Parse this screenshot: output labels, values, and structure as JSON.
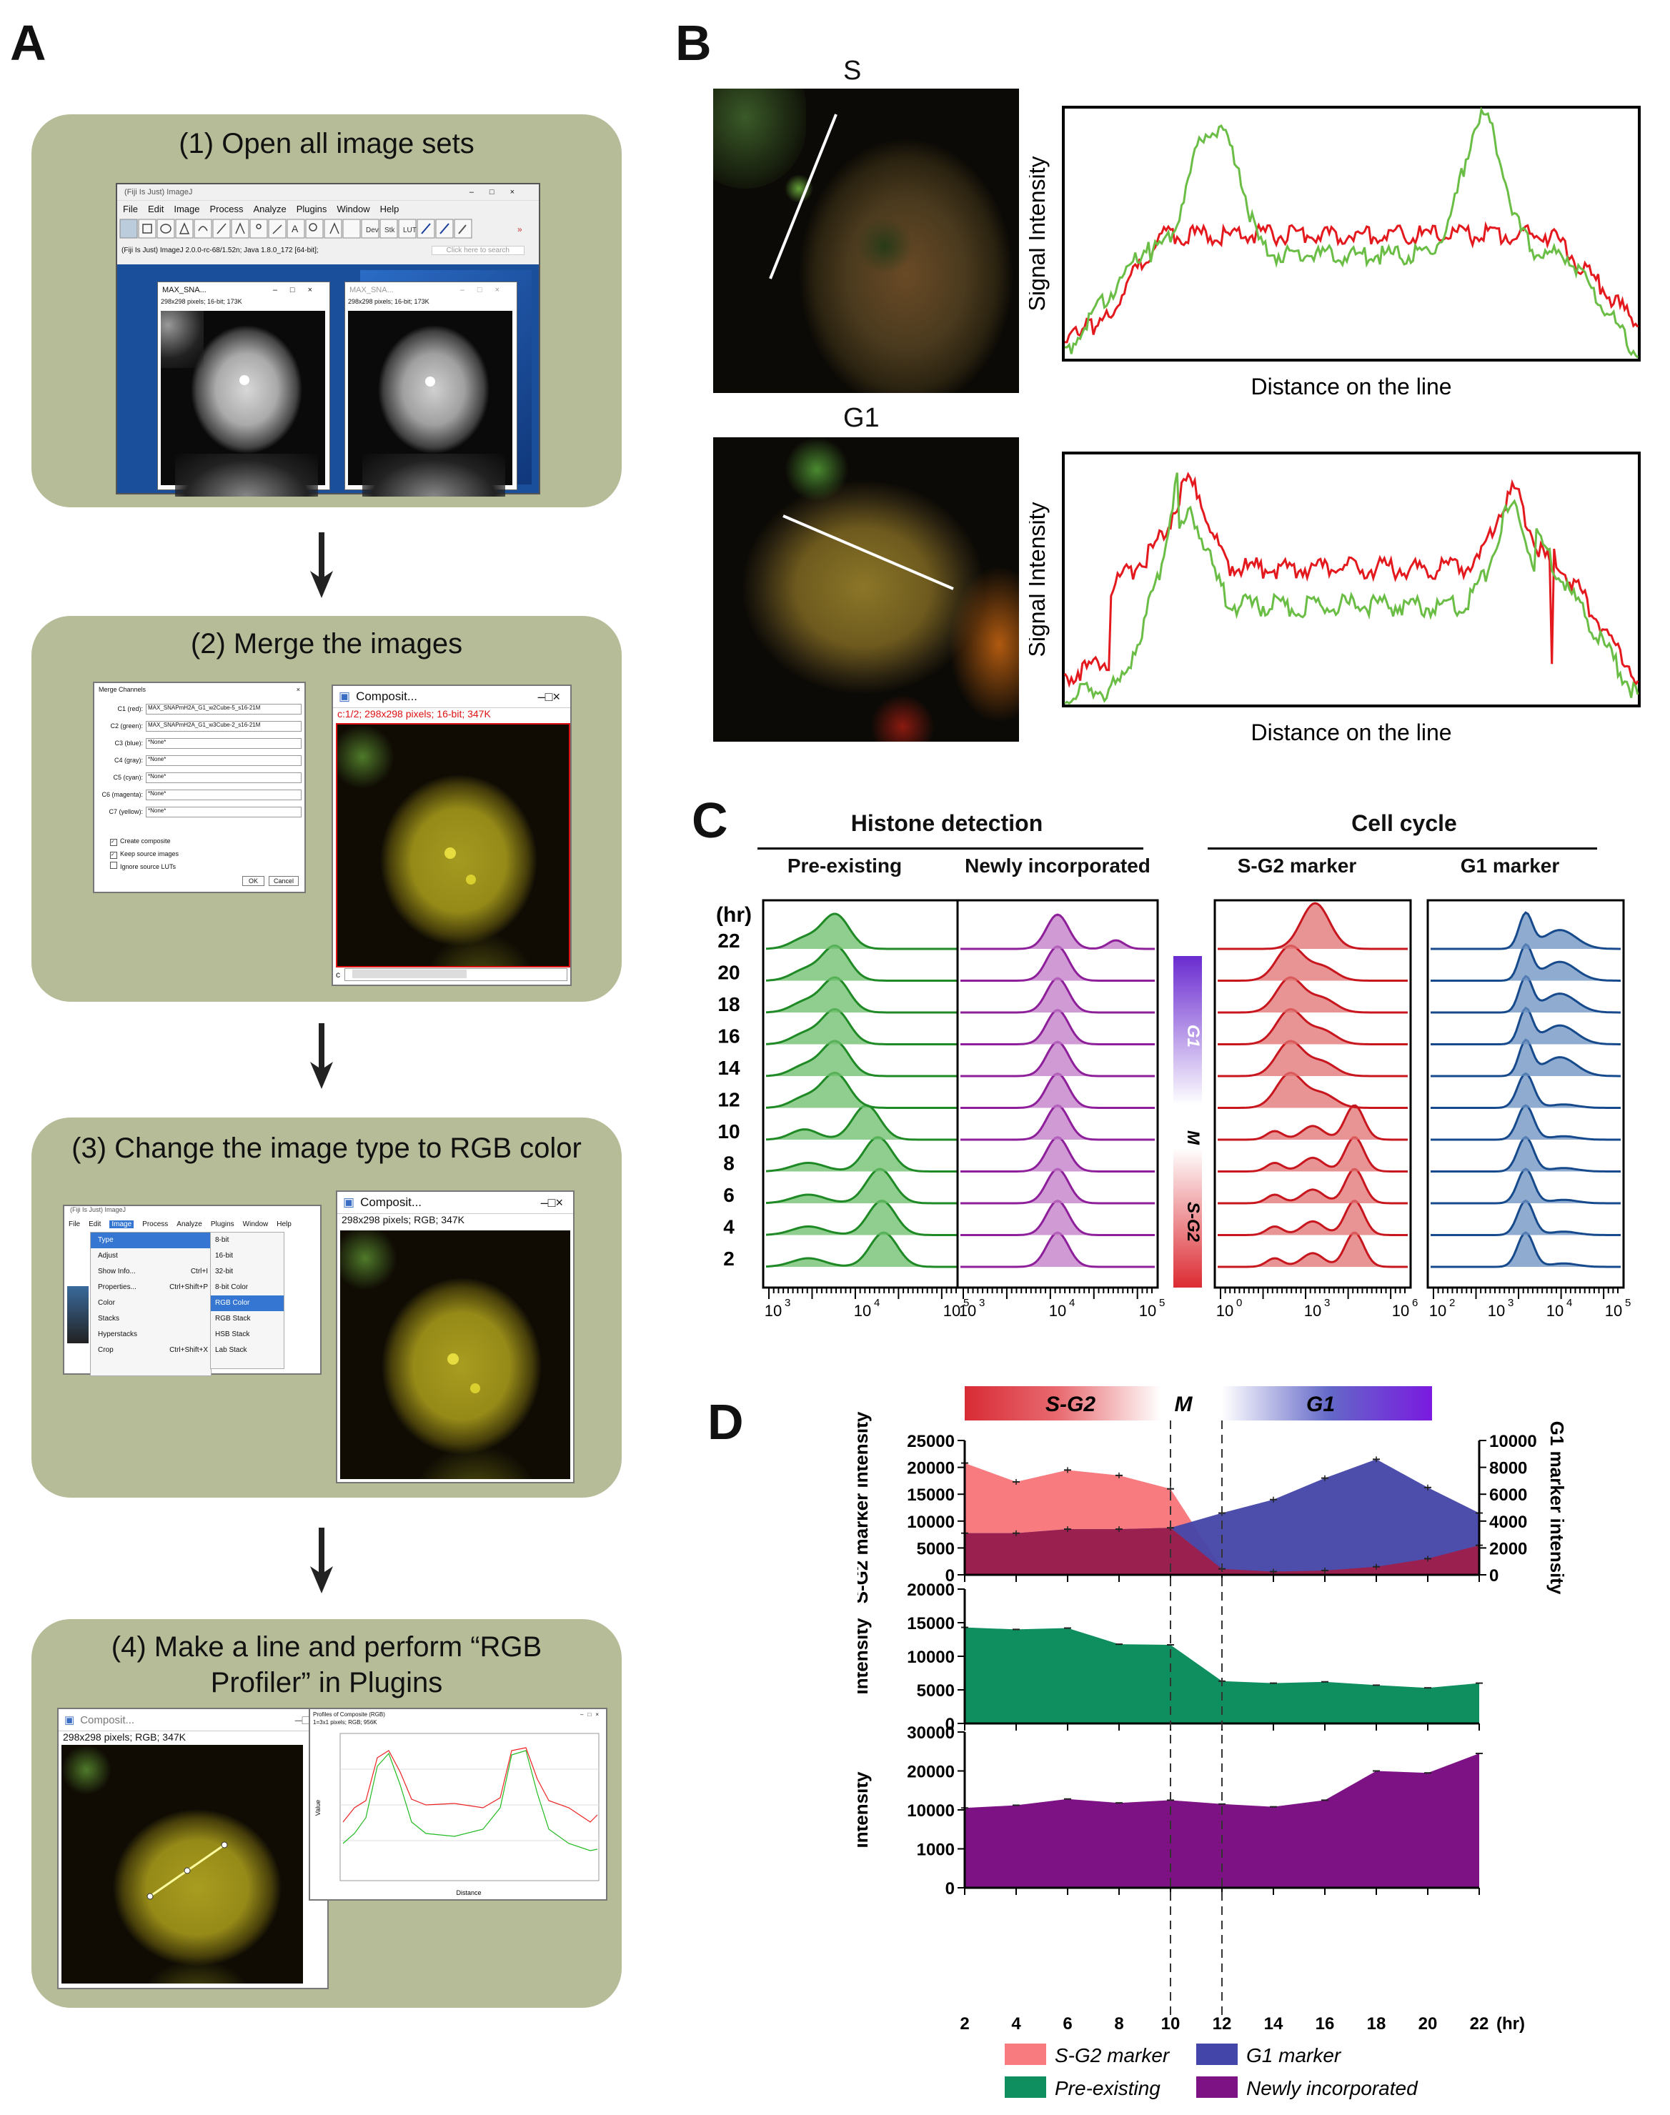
{
  "panels": {
    "a": "A",
    "b": "B",
    "c": "C",
    "d": "D"
  },
  "panel_a": {
    "steps": [
      {
        "title": "(1) Open all image sets"
      },
      {
        "title": "(2) Merge the images"
      },
      {
        "title": "(3) Change the image type to RGB color"
      },
      {
        "title_line1": "(4) Make a line and perform “RGB",
        "title_line2": "Profiler” in Plugins"
      }
    ],
    "imagej": {
      "title": "(Fiji Is Just) ImageJ",
      "menus": [
        "File",
        "Edit",
        "Image",
        "Process",
        "Analyze",
        "Plugins",
        "Window",
        "Help"
      ],
      "status": "(Fiji Is Just) ImageJ 2.0.0-rc-68/1.52n; Java 1.8.0_172 [64-bit];",
      "search": "Click here to search",
      "tool_labels": [
        "Dev",
        "Stk",
        "LUT"
      ],
      "img_window_title": "MAX_SNA...",
      "img_window_info": "298x298 pixels; 16-bit; 173K"
    },
    "merge": {
      "dialog_title": "Merge Channels",
      "channels": [
        {
          "label": "C1 (red):",
          "value": "MAX_SNAPmH2A_G1_w2Cube-5_s16-21M"
        },
        {
          "label": "C2 (green):",
          "value": "MAX_SNAPmH2A_G1_w3Cube-2_s16-21M"
        },
        {
          "label": "C3 (blue):",
          "value": "*None*"
        },
        {
          "label": "C4 (gray):",
          "value": "*None*"
        },
        {
          "label": "C5 (cyan):",
          "value": "*None*"
        },
        {
          "label": "C6 (magenta):",
          "value": "*None*"
        },
        {
          "label": "C7 (yellow):",
          "value": "*None*"
        }
      ],
      "checks": [
        "Create composite",
        "Keep source images",
        "Ignore source LUTs"
      ],
      "ok": "OK",
      "cancel": "Cancel",
      "composite_title": "Composit...",
      "composite_info": "c:1/2; 298x298 pixels; 16-bit; 347K",
      "scroll_label": "c"
    },
    "rgb": {
      "menus": [
        "File",
        "Edit",
        "Image",
        "Process",
        "Analyze",
        "Plugins",
        "Window",
        "Help"
      ],
      "image_menu": [
        "Type",
        "Adjust",
        "Show Info...",
        "Properties...",
        "Color",
        "Stacks",
        "Hyperstacks",
        "Crop"
      ],
      "shortcuts": [
        "Ctrl+I",
        "Ctrl+Shift+P",
        "Ctrl+Shift+X"
      ],
      "type_menu": [
        "8-bit",
        "16-bit",
        "32-bit",
        "8-bit Color",
        "RGB Color",
        "RGB Stack",
        "HSB Stack",
        "Lab Stack"
      ],
      "composite_title": "Composit...",
      "composite_info": "298x298 pixels; RGB; 347K"
    },
    "profile": {
      "composite_title": "Composit...",
      "composite_info": "298x298 pixels; RGB; 347K",
      "plot_title": "Profiles of Composite (RGB)",
      "plot_info": "1=3x1 pixels; RGB; 956K",
      "xlabel": "Distance",
      "ylabel": "Value"
    }
  },
  "panel_b": {
    "labels": [
      "S",
      "G1"
    ],
    "ylabel": "Signal Intensity",
    "xlabel": "Distance on the line"
  },
  "panel_c": {
    "group1": "Histone detection",
    "group2": "Cell cycle",
    "columns": [
      "Pre-existing",
      "Newly incorporated",
      "S-G2 marker",
      "G1 marker"
    ],
    "hr_label": "(hr)",
    "rows": [
      "22",
      "20",
      "18",
      "16",
      "14",
      "12",
      "10",
      "8",
      "6",
      "4",
      "2"
    ],
    "bar_labels": [
      "G1",
      "M",
      "S-G2"
    ],
    "axes": [
      {
        "ticks": [
          "10",
          "10",
          "10"
        ],
        "exps": [
          "3",
          "4",
          "5"
        ]
      },
      {
        "ticks": [
          "10",
          "10",
          "10"
        ],
        "exps": [
          "3",
          "4",
          "5"
        ]
      },
      {
        "ticks": [
          "10",
          "10",
          "10"
        ],
        "exps": [
          "0",
          "3",
          "6"
        ]
      },
      {
        "ticks": [
          "10",
          "10",
          "10",
          "10"
        ],
        "exps": [
          "2",
          "3",
          "4",
          "5"
        ]
      }
    ]
  },
  "panel_d": {
    "phase_labels": [
      "S-G2",
      "M",
      "G1"
    ],
    "legend": [
      "S-G2 marker",
      "G1 marker",
      "Pre-existing",
      "Newly incorporated"
    ],
    "x_unit": "(hr)"
  },
  "chart_data": [
    {
      "type": "area",
      "ylabel": "S-G2 marker intensity",
      "y2label": "G1 marker intensity",
      "x": [
        2,
        4,
        6,
        8,
        10,
        12,
        14,
        16,
        18,
        20,
        22
      ],
      "ylim": [
        0,
        25000
      ],
      "y2lim": [
        0,
        10000
      ],
      "yticks": [
        "0",
        "5000",
        "10000",
        "15000",
        "20000",
        "25000"
      ],
      "y2ticks": [
        "0",
        "2000",
        "4000",
        "6000",
        "8000",
        "10000"
      ],
      "series": [
        {
          "name": "S-G2 marker",
          "axis": "left",
          "values": [
            20800,
            17300,
            19500,
            18500,
            16000,
            1100,
            600,
            800,
            1500,
            3000,
            5500
          ]
        },
        {
          "name": "G1 marker",
          "axis": "right",
          "values": [
            3100,
            3100,
            3400,
            3400,
            3500,
            4600,
            5600,
            7200,
            8600,
            6500,
            4600
          ]
        }
      ],
      "vlines": [
        10,
        12
      ],
      "colors": {
        "S-G2 marker": "#f87b80",
        "G1 marker": "#4345a8",
        "overlap": "#9a2050"
      }
    },
    {
      "type": "area",
      "ylabel": "Intensity",
      "x": [
        2,
        4,
        6,
        8,
        10,
        12,
        14,
        16,
        18,
        20,
        22
      ],
      "ylim": [
        0,
        20000
      ],
      "yticks": [
        "0",
        "5000",
        "10000",
        "15000",
        "20000"
      ],
      "series": [
        {
          "name": "Pre-existing",
          "values": [
            14300,
            14000,
            14200,
            11800,
            11700,
            6300,
            6000,
            6200,
            5700,
            5300,
            6000
          ]
        }
      ],
      "vlines": [
        10,
        12
      ],
      "colors": {
        "Pre-existing": "#0f8f60"
      }
    },
    {
      "type": "area",
      "ylabel": "Intensity",
      "x": [
        2,
        4,
        6,
        8,
        10,
        12,
        14,
        16,
        18,
        20,
        22
      ],
      "ylim": [
        0,
        30000
      ],
      "yticks": [
        "0",
        "1000",
        "10000",
        "20000",
        "30000"
      ],
      "series": [
        {
          "name": "Newly incorporated",
          "values": [
            10500,
            11200,
            12800,
            11800,
            12500,
            11500,
            10800,
            12500,
            20000,
            19500,
            24500
          ]
        }
      ],
      "vlines": [
        10,
        12
      ],
      "colors": {
        "Newly incorporated": "#7d1284"
      }
    }
  ]
}
